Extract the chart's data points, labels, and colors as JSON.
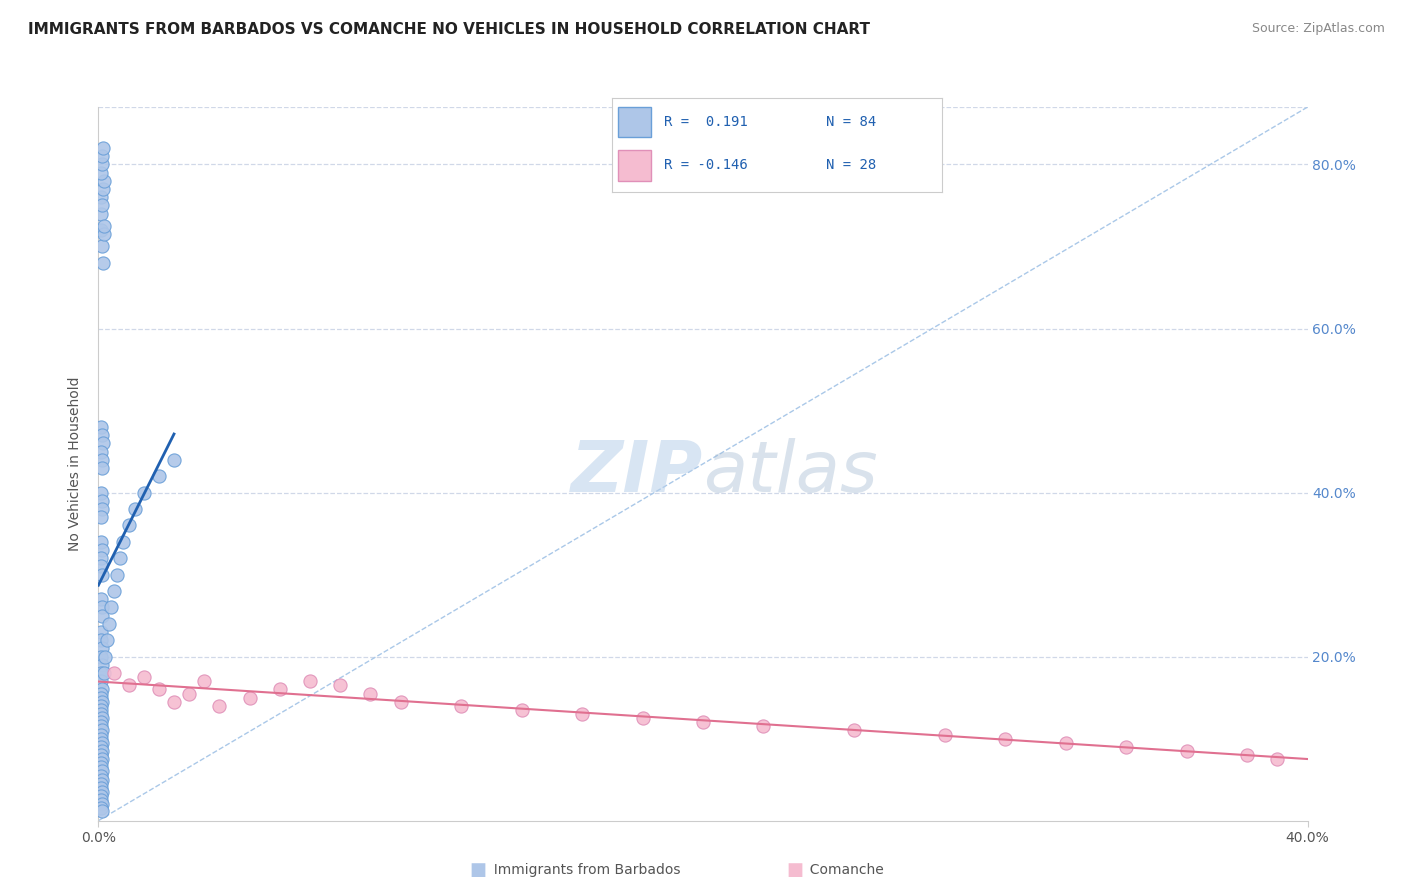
{
  "title": "IMMIGRANTS FROM BARBADOS VS COMANCHE NO VEHICLES IN HOUSEHOLD CORRELATION CHART",
  "source_text": "Source: ZipAtlas.com",
  "ylabel": "No Vehicles in Household",
  "legend_label1": "Immigrants from Barbados",
  "legend_label2": "Comanche",
  "blue_color": "#aec6e8",
  "blue_edge_color": "#6a9fd8",
  "pink_color": "#f5bcd0",
  "pink_edge_color": "#e090b8",
  "blue_line_color": "#2060b0",
  "pink_line_color": "#e07090",
  "diag_color": "#aac8e8",
  "grid_color": "#d0d8e8",
  "r1": 0.191,
  "r2": -0.146,
  "n1": 84,
  "n2": 28,
  "xmin": 0.0,
  "xmax": 0.4,
  "ymin": 0.0,
  "ymax": 0.87,
  "legend_r1_text": "R =  0.191",
  "legend_n1_text": "N = 84",
  "legend_r2_text": "R = -0.146",
  "legend_n2_text": "N = 28",
  "blue_dots_x": [
    0.001,
    0.001,
    0.0013,
    0.0015,
    0.0017,
    0.002,
    0.001,
    0.0012,
    0.0015,
    0.0018,
    0.001,
    0.0011,
    0.0013,
    0.0016,
    0.0009,
    0.0012,
    0.0014,
    0.001,
    0.0011,
    0.0013,
    0.001,
    0.0012,
    0.0011,
    0.001,
    0.001,
    0.0011,
    0.0009,
    0.001,
    0.0012,
    0.001,
    0.0011,
    0.0013,
    0.0009,
    0.001,
    0.0011,
    0.001,
    0.0012,
    0.0009,
    0.001,
    0.0011,
    0.001,
    0.0009,
    0.0011,
    0.001,
    0.0009,
    0.001,
    0.0011,
    0.0009,
    0.001,
    0.0011,
    0.0009,
    0.001,
    0.0011,
    0.0009,
    0.0012,
    0.001,
    0.0011,
    0.001,
    0.0009,
    0.0011,
    0.001,
    0.0011,
    0.0009,
    0.001,
    0.0011,
    0.001,
    0.0009,
    0.0012,
    0.001,
    0.0013,
    0.0018,
    0.0022,
    0.003,
    0.0035,
    0.004,
    0.005,
    0.006,
    0.007,
    0.008,
    0.01,
    0.012,
    0.015,
    0.02,
    0.025
  ],
  "blue_dots_y": [
    0.72,
    0.74,
    0.7,
    0.68,
    0.715,
    0.725,
    0.76,
    0.75,
    0.77,
    0.78,
    0.79,
    0.8,
    0.81,
    0.82,
    0.48,
    0.47,
    0.46,
    0.45,
    0.44,
    0.43,
    0.4,
    0.39,
    0.38,
    0.37,
    0.34,
    0.33,
    0.32,
    0.31,
    0.3,
    0.27,
    0.26,
    0.25,
    0.23,
    0.22,
    0.21,
    0.2,
    0.19,
    0.18,
    0.17,
    0.16,
    0.155,
    0.15,
    0.145,
    0.14,
    0.135,
    0.13,
    0.125,
    0.12,
    0.115,
    0.11,
    0.105,
    0.1,
    0.095,
    0.09,
    0.085,
    0.08,
    0.075,
    0.07,
    0.065,
    0.06,
    0.055,
    0.05,
    0.045,
    0.04,
    0.035,
    0.03,
    0.025,
    0.02,
    0.015,
    0.012,
    0.18,
    0.2,
    0.22,
    0.24,
    0.26,
    0.28,
    0.3,
    0.32,
    0.34,
    0.36,
    0.38,
    0.4,
    0.42,
    0.44
  ],
  "pink_dots_x": [
    0.005,
    0.01,
    0.015,
    0.02,
    0.025,
    0.03,
    0.035,
    0.04,
    0.05,
    0.06,
    0.07,
    0.08,
    0.09,
    0.1,
    0.12,
    0.14,
    0.16,
    0.18,
    0.2,
    0.22,
    0.25,
    0.28,
    0.3,
    0.32,
    0.34,
    0.36,
    0.38,
    0.39
  ],
  "pink_dots_y": [
    0.18,
    0.165,
    0.175,
    0.16,
    0.145,
    0.155,
    0.17,
    0.14,
    0.15,
    0.16,
    0.17,
    0.165,
    0.155,
    0.145,
    0.14,
    0.135,
    0.13,
    0.125,
    0.12,
    0.115,
    0.11,
    0.105,
    0.1,
    0.095,
    0.09,
    0.085,
    0.08,
    0.075
  ]
}
